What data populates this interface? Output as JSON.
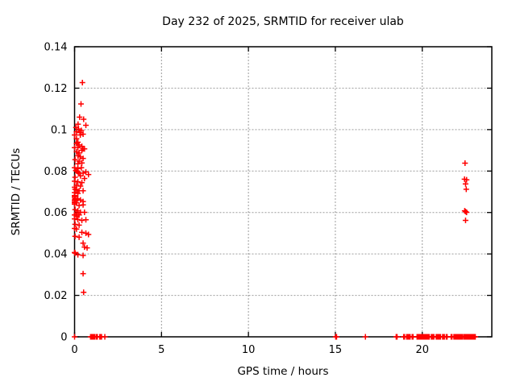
{
  "style": {
    "background": "#ffffff",
    "border_color": "#000000",
    "grid_color": "#9c9c9c",
    "text_color": "#000000",
    "marker_color": "#ff0000"
  },
  "chart_data": {
    "type": "scatter",
    "title": "Day 232 of 2025, SRMTID for receiver ulab",
    "xlabel": "GPS time / hours",
    "ylabel": "SRMTID / TECUs",
    "xlim": [
      0,
      24
    ],
    "ylim": [
      0,
      0.14
    ],
    "grid": true,
    "legend_position": "none",
    "marker": {
      "shape": "plus",
      "color": "#ff0000",
      "size": 7
    },
    "xticks": {
      "values": [
        0,
        5,
        10,
        15,
        20
      ],
      "labels": [
        "0",
        "5",
        "10",
        "15",
        "20"
      ]
    },
    "yticks": {
      "values": [
        0,
        0.02,
        0.04,
        0.06,
        0.08,
        0.1,
        0.12,
        0.14
      ],
      "labels": [
        "0",
        "0.02",
        "0.04",
        "0.06",
        "0.08",
        "0.1",
        "0.12",
        "0.14"
      ]
    },
    "series": [
      {
        "name": "SRMTID",
        "points": [
          [
            0.45,
            0.1227
          ],
          [
            0.37,
            0.1124
          ],
          [
            0.29,
            0.106
          ],
          [
            0.52,
            0.105
          ],
          [
            0.2,
            0.1026
          ],
          [
            0.65,
            0.1021
          ],
          [
            0.08,
            0.101
          ],
          [
            0.23,
            0.1003
          ],
          [
            0.39,
            0.0996
          ],
          [
            0.11,
            0.099
          ],
          [
            0.31,
            0.0986
          ],
          [
            0.49,
            0.0978
          ],
          [
            0,
            0.0974
          ],
          [
            0.33,
            0.0974
          ],
          [
            0.11,
            0.0956
          ],
          [
            0.19,
            0.0939
          ],
          [
            0.11,
            0.0933
          ],
          [
            0.26,
            0.0926
          ],
          [
            0.42,
            0.0919
          ],
          [
            0.19,
            0.0913
          ],
          [
            0,
            0.0913
          ],
          [
            0.49,
            0.0907
          ],
          [
            0.57,
            0.0907
          ],
          [
            0.42,
            0.09
          ],
          [
            0.11,
            0.0893
          ],
          [
            0.26,
            0.0887
          ],
          [
            0.19,
            0.0874
          ],
          [
            0.34,
            0.0868
          ],
          [
            0.49,
            0.0861
          ],
          [
            0.03,
            0.0855
          ],
          [
            0.26,
            0.0848
          ],
          [
            0.42,
            0.0839
          ],
          [
            0.19,
            0.0835
          ],
          [
            0,
            0.0816
          ],
          [
            0.39,
            0.0816
          ],
          [
            0.19,
            0.0812
          ],
          [
            0.07,
            0.0802
          ],
          [
            0.14,
            0.0799
          ],
          [
            0.2,
            0.0796
          ],
          [
            0.65,
            0.0796
          ],
          [
            0.26,
            0.079
          ],
          [
            0.49,
            0.079
          ],
          [
            0.8,
            0.0783
          ],
          [
            0.34,
            0.0777
          ],
          [
            0.03,
            0.077
          ],
          [
            0.57,
            0.0764
          ],
          [
            0,
            0.0751
          ],
          [
            0.19,
            0.0748
          ],
          [
            0.42,
            0.0744
          ],
          [
            0.11,
            0.0731
          ],
          [
            0.34,
            0.0727
          ],
          [
            0,
            0.0722
          ],
          [
            0.03,
            0.0712
          ],
          [
            0.11,
            0.0709
          ],
          [
            0.26,
            0.0705
          ],
          [
            0.49,
            0.0705
          ],
          [
            0,
            0.0696
          ],
          [
            0.19,
            0.0692
          ],
          [
            0,
            0.0682
          ],
          [
            0,
            0.0679
          ],
          [
            0,
            0.0673
          ],
          [
            0.03,
            0.0666
          ],
          [
            0.19,
            0.0666
          ],
          [
            0,
            0.066
          ],
          [
            0.34,
            0.066
          ],
          [
            0,
            0.0653
          ],
          [
            0.49,
            0.0653
          ],
          [
            0,
            0.0647
          ],
          [
            0.11,
            0.0647
          ],
          [
            0,
            0.064
          ],
          [
            0.49,
            0.0637
          ],
          [
            0.26,
            0.0634
          ],
          [
            0.03,
            0.0614
          ],
          [
            0.19,
            0.0608
          ],
          [
            0.34,
            0.0601
          ],
          [
            0.57,
            0.0601
          ],
          [
            0.11,
            0.0595
          ],
          [
            0.26,
            0.0588
          ],
          [
            0,
            0.0588
          ],
          [
            0.11,
            0.0582
          ],
          [
            0,
            0.0569
          ],
          [
            0.19,
            0.0566
          ],
          [
            0.65,
            0.0565
          ],
          [
            0.42,
            0.0562
          ],
          [
            0.03,
            0.0543
          ],
          [
            0.26,
            0.0539
          ],
          [
            0,
            0.0523
          ],
          [
            0.11,
            0.052
          ],
          [
            0.42,
            0.0504
          ],
          [
            0.65,
            0.05
          ],
          [
            0.8,
            0.0494
          ],
          [
            0.03,
            0.0485
          ],
          [
            0.26,
            0.0481
          ],
          [
            0.49,
            0.0452
          ],
          [
            0.57,
            0.0433
          ],
          [
            0.72,
            0.0429
          ],
          [
            0,
            0.0407
          ],
          [
            0.03,
            0.0404
          ],
          [
            0.19,
            0.0396
          ],
          [
            0.49,
            0.0393
          ],
          [
            0.49,
            0.0305
          ],
          [
            0.52,
            0.0215
          ],
          [
            22.46,
            0.0838
          ],
          [
            22.43,
            0.0761
          ],
          [
            22.55,
            0.0758
          ],
          [
            22.49,
            0.0738
          ],
          [
            22.53,
            0.0712
          ],
          [
            22.44,
            0.0608
          ],
          [
            22.49,
            0.0604
          ],
          [
            22.55,
            0.0601
          ],
          [
            22.49,
            0.0562
          ],
          [
            0,
            0
          ],
          [
            0.92,
            0
          ],
          [
            0.97,
            0
          ],
          [
            1.02,
            0
          ],
          [
            1.07,
            0
          ],
          [
            1.12,
            0
          ],
          [
            1.17,
            0
          ],
          [
            1.26,
            0
          ],
          [
            1.31,
            0
          ],
          [
            1.45,
            0
          ],
          [
            1.5,
            0
          ],
          [
            1.55,
            0
          ],
          [
            1.74,
            0
          ],
          [
            15.02,
            0
          ],
          [
            15.07,
            0
          ],
          [
            16.73,
            0
          ],
          [
            18.5,
            0
          ],
          [
            18.55,
            0
          ],
          [
            18.93,
            0
          ],
          [
            18.98,
            0
          ],
          [
            19.1,
            0
          ],
          [
            19.15,
            0
          ],
          [
            19.2,
            0
          ],
          [
            19.25,
            0
          ],
          [
            19.3,
            0
          ],
          [
            19.42,
            0
          ],
          [
            19.47,
            0
          ],
          [
            19.7,
            0
          ],
          [
            19.75,
            0
          ],
          [
            19.8,
            0
          ],
          [
            19.85,
            0
          ],
          [
            19.9,
            0
          ],
          [
            19.95,
            0
          ],
          [
            20,
            0
          ],
          [
            20.05,
            0
          ],
          [
            20.1,
            0
          ],
          [
            20.15,
            0
          ],
          [
            20.2,
            0
          ],
          [
            20.25,
            0
          ],
          [
            20.3,
            0
          ],
          [
            20.35,
            0
          ],
          [
            20.4,
            0
          ],
          [
            20.52,
            0
          ],
          [
            20.57,
            0
          ],
          [
            20.62,
            0
          ],
          [
            20.67,
            0
          ],
          [
            20.8,
            0
          ],
          [
            20.85,
            0
          ],
          [
            20.9,
            0
          ],
          [
            20.95,
            0
          ],
          [
            21,
            0
          ],
          [
            21.05,
            0
          ],
          [
            21.17,
            0
          ],
          [
            21.22,
            0
          ],
          [
            21.27,
            0
          ],
          [
            21.38,
            0
          ],
          [
            21.43,
            0
          ],
          [
            21.66,
            0
          ],
          [
            21.71,
            0
          ],
          [
            21.82,
            0
          ],
          [
            21.87,
            0
          ],
          [
            21.92,
            0
          ],
          [
            21.97,
            0
          ],
          [
            22.02,
            0
          ],
          [
            22.07,
            0
          ],
          [
            22.12,
            0
          ],
          [
            22.17,
            0
          ],
          [
            22.22,
            0
          ],
          [
            22.27,
            0
          ],
          [
            22.32,
            0
          ],
          [
            22.4,
            0
          ],
          [
            22.45,
            0
          ],
          [
            22.5,
            0
          ],
          [
            22.55,
            0
          ],
          [
            22.6,
            0
          ],
          [
            22.65,
            0
          ],
          [
            22.7,
            0
          ],
          [
            22.75,
            0
          ],
          [
            22.8,
            0
          ],
          [
            22.85,
            0
          ],
          [
            22.9,
            0
          ],
          [
            22.95,
            0
          ],
          [
            23,
            0
          ],
          [
            23.05,
            0
          ]
        ]
      }
    ]
  }
}
